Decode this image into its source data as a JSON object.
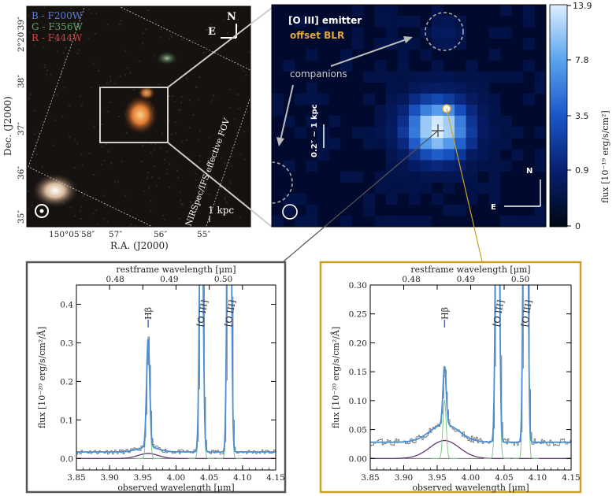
{
  "image_panel": {
    "legend": [
      {
        "label": "B - F200W",
        "color": "#5b7bd5"
      },
      {
        "label": "G - F356W",
        "color": "#5fa35f"
      },
      {
        "label": "R - F444W",
        "color": "#d04545"
      }
    ],
    "fov_label": "NIRSpec/IFS effective FOV",
    "scale_label": "1 kpc",
    "compass_n": "N",
    "compass_e": "E",
    "ylabel": "Dec. (J2000)",
    "xlabel": "R.A. (J2000)",
    "dec_ticks": [
      "2°20′39″",
      "38″",
      "37″",
      "36″",
      "35″"
    ],
    "ra_ticks": [
      "150°05′58″",
      "57″",
      "56″",
      "55″"
    ]
  },
  "map_panel": {
    "label_emitter": "[O III] emitter",
    "label_blr": "offset BLR",
    "label_companions": "companions",
    "scale_label": "0.2″ ~ 1 kpc",
    "compass_n": "N",
    "compass_e": "E",
    "colorbar_ticks": [
      "13.9",
      "7.8",
      "3.5",
      "0.9",
      "0"
    ],
    "colorbar_label": "flux [10⁻¹⁹ erg/s/cm²]",
    "colorbar_top": "#dcefff",
    "colorbar_bottom": "#000814"
  },
  "chart_data": [
    {
      "type": "line",
      "name_box_color": "#555555",
      "xlabel": "observed wavelength [μm]",
      "x2label": "restframe wavelength [μm]",
      "ylabel": "flux [10⁻²⁰ erg/s/cm²/Å]",
      "xlim": [
        3.85,
        4.15
      ],
      "ylim": [
        -0.03,
        0.45
      ],
      "xticks": [
        "3.85",
        "3.90",
        "3.95",
        "4.00",
        "4.05",
        "4.10",
        "4.15"
      ],
      "yticks": [
        "0.0",
        "0.1",
        "0.2",
        "0.3",
        "0.4"
      ],
      "x2ticks": [
        "0.48",
        "0.49",
        "0.50"
      ],
      "continuum": 0.017,
      "lines": [
        {
          "label": "Hβ",
          "center": 3.958,
          "narrow_amp": 0.28,
          "broad_amp": 0.013,
          "broad_sigma": 0.015
        },
        {
          "label": "[O III]",
          "center": 4.038,
          "narrow_amp": 0.9
        },
        {
          "label": "[O III]",
          "center": 4.08,
          "narrow_amp": 1.6
        }
      ]
    },
    {
      "type": "line",
      "name_box_color": "#c9a227",
      "xlabel": "observed wavelength [μm]",
      "x2label": "restframe wavelength [μm]",
      "ylabel": "flux [10⁻²⁰ erg/s/cm²/Å]",
      "xlim": [
        3.85,
        4.15
      ],
      "ylim": [
        -0.02,
        0.3
      ],
      "xticks": [
        "3.85",
        "3.90",
        "3.95",
        "4.00",
        "4.05",
        "4.10",
        "4.15"
      ],
      "yticks": [
        "0.00",
        "0.05",
        "0.10",
        "0.15",
        "0.20",
        "0.25",
        "0.30"
      ],
      "x2ticks": [
        "0.48",
        "0.49",
        "0.50"
      ],
      "continuum": 0.028,
      "lines": [
        {
          "label": "Hβ",
          "center": 3.961,
          "narrow_amp": 0.1,
          "broad_amp": 0.031,
          "broad_sigma": 0.022
        },
        {
          "label": "[O III]",
          "center": 4.04,
          "narrow_amp": 0.8
        },
        {
          "label": "[O III]",
          "center": 4.082,
          "narrow_amp": 1.4
        }
      ]
    }
  ]
}
